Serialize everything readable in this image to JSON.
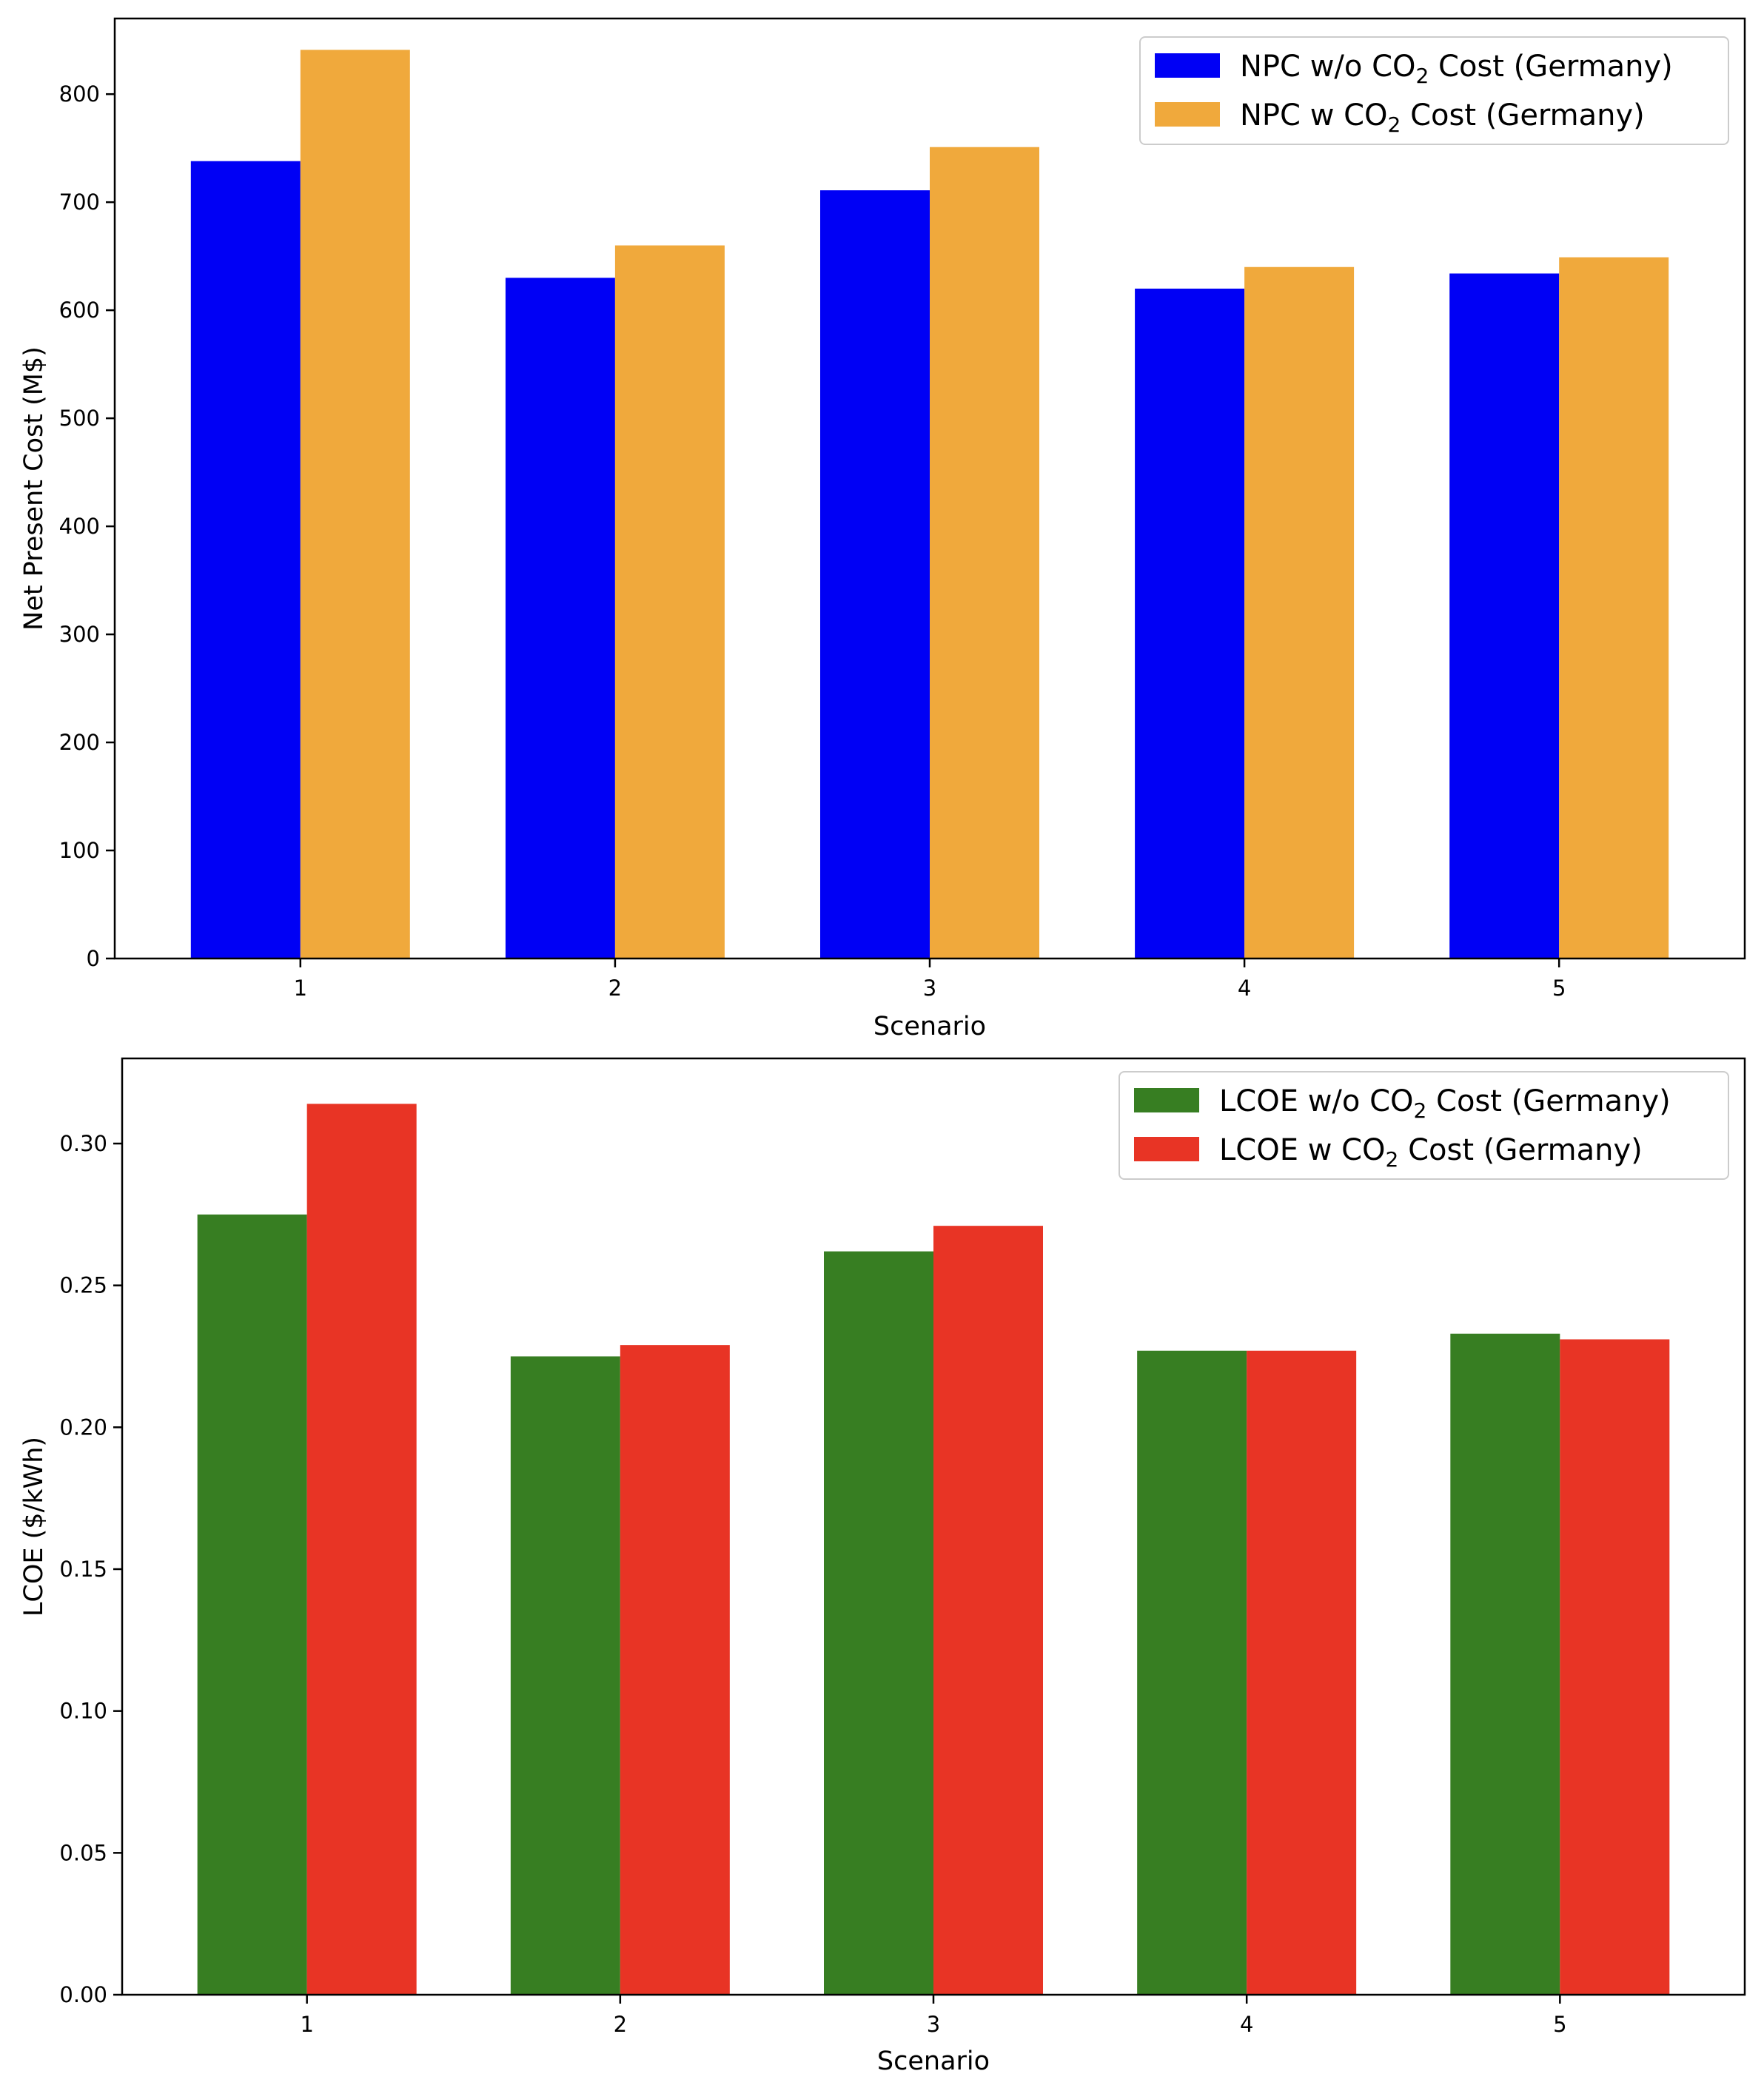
{
  "chart_data": [
    {
      "type": "bar",
      "categories": [
        "1",
        "2",
        "3",
        "4",
        "5"
      ],
      "xlabel": "Scenario",
      "ylabel": "Net Present Cost (M$)",
      "ylim": [
        0,
        870
      ],
      "yticks": [
        "0",
        "100",
        "200",
        "300",
        "400",
        "500",
        "600",
        "700",
        "800"
      ],
      "grid": false,
      "legend_position": "top-right",
      "series": [
        {
          "name": "NPC w/o CO2 Cost (Germany)",
          "legend_pre": "NPC w/o CO",
          "legend_sub": "2",
          "legend_post": " Cost (Germany)",
          "color": "#0000f5",
          "values": [
            738,
            630,
            711,
            620,
            634
          ]
        },
        {
          "name": "NPC w CO2 Cost (Germany)",
          "legend_pre": "NPC w CO",
          "legend_sub": "2",
          "legend_post": " Cost (Germany)",
          "color": "#f0a93c",
          "values": [
            841,
            660,
            751,
            640,
            649
          ]
        }
      ]
    },
    {
      "type": "bar",
      "categories": [
        "1",
        "2",
        "3",
        "4",
        "5"
      ],
      "xlabel": "Scenario",
      "ylabel": "LCOE ($/kWh)",
      "ylim": [
        0,
        0.33
      ],
      "yticks": [
        "0.00",
        "0.05",
        "0.10",
        "0.15",
        "0.20",
        "0.25",
        "0.30"
      ],
      "grid": false,
      "legend_position": "top-right",
      "series": [
        {
          "name": "LCOE w/o CO2 Cost (Germany)",
          "legend_pre": "LCOE w/o CO",
          "legend_sub": "2",
          "legend_post": " Cost (Germany)",
          "color": "#377e22",
          "values": [
            0.275,
            0.225,
            0.262,
            0.227,
            0.233
          ]
        },
        {
          "name": "LCOE w CO2 Cost (Germany)",
          "legend_pre": "LCOE w CO",
          "legend_sub": "2",
          "legend_post": " Cost (Germany)",
          "color": "#e83425",
          "values": [
            0.314,
            0.229,
            0.271,
            0.227,
            0.231
          ]
        }
      ]
    }
  ]
}
